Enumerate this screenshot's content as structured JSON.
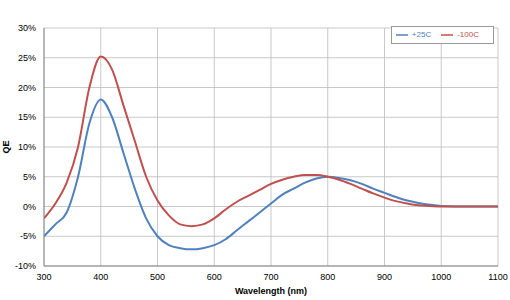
{
  "chart_data": {
    "type": "line",
    "x_label": "Wavelength (nm)",
    "y_label": "QE",
    "x": [
      300,
      320,
      340,
      360,
      380,
      400,
      420,
      440,
      460,
      480,
      500,
      520,
      540,
      560,
      580,
      600,
      620,
      640,
      660,
      680,
      700,
      720,
      740,
      760,
      780,
      800,
      820,
      840,
      860,
      880,
      900,
      920,
      940,
      960,
      980,
      1000,
      1050,
      1100
    ],
    "series": [
      {
        "name": "+25C",
        "color": "#4f81bd",
        "values": [
          -5,
          -3,
          -1,
          5,
          14,
          18,
          15,
          9,
          3,
          -2,
          -5,
          -6.5,
          -7,
          -7.2,
          -7,
          -6.5,
          -5.5,
          -4,
          -2.5,
          -1,
          0.5,
          2,
          3,
          4,
          4.7,
          5,
          4.8,
          4.4,
          3.8,
          3,
          2.3,
          1.6,
          1,
          0.6,
          0.3,
          0.1,
          0,
          0
        ]
      },
      {
        "name": "-100C",
        "color": "#c0504d",
        "values": [
          -2,
          0.5,
          4,
          10,
          20,
          25.2,
          23,
          17,
          11,
          5,
          1,
          -1.5,
          -3,
          -3.3,
          -3,
          -2,
          -0.5,
          0.8,
          1.8,
          2.8,
          3.8,
          4.5,
          5,
          5.3,
          5.3,
          5,
          4.5,
          3.8,
          3,
          2.2,
          1.5,
          0.9,
          0.5,
          0.2,
          0.1,
          0,
          0,
          0
        ]
      }
    ],
    "xlim": [
      300,
      1100
    ],
    "xticks": [
      300,
      400,
      500,
      600,
      700,
      800,
      900,
      1000,
      1100
    ],
    "ylim": [
      -10,
      30
    ],
    "yticks": [
      {
        "value": -10,
        "label": "-10%"
      },
      {
        "value": -5,
        "label": "-5%"
      },
      {
        "value": 0,
        "label": "0%"
      },
      {
        "value": 5,
        "label": "5%"
      },
      {
        "value": 10,
        "label": "10%"
      },
      {
        "value": 15,
        "label": "15%"
      },
      {
        "value": 20,
        "label": "20%"
      },
      {
        "value": 25,
        "label": "25%"
      },
      {
        "value": 30,
        "label": "30%"
      }
    ],
    "grid": true,
    "legend": "upper right"
  }
}
